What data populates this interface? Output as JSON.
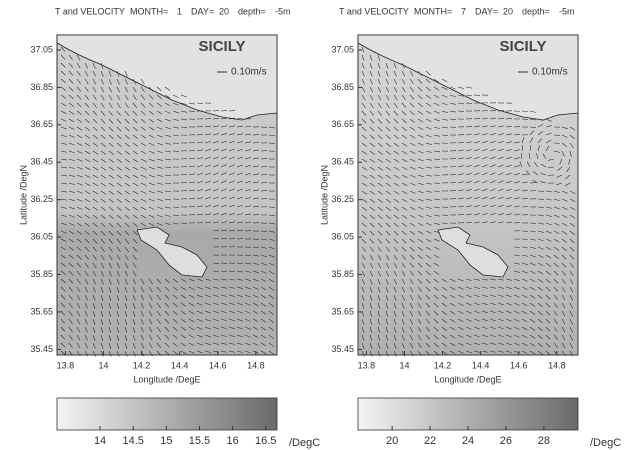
{
  "panels": [
    {
      "header": {
        "title": "T and VELOCITY",
        "month_label": "MONTH=",
        "month": 1,
        "day_label": "DAY=",
        "day": 20,
        "depth_label": "depth=",
        "depth": "-5m"
      },
      "region": "SICILY",
      "scale_label": "0.10m/s",
      "xlabel": "Longitude /DegE",
      "ylabel": "Latitude /DegN",
      "xlim": [
        13.756,
        14.911
      ],
      "ylim": [
        35.42,
        37.13
      ],
      "xticks": [
        13.8,
        14,
        14.2,
        14.4,
        14.6,
        14.8
      ],
      "yticks": [
        35.45,
        35.65,
        35.85,
        36.05,
        36.25,
        36.45,
        36.65,
        36.85,
        37.05
      ],
      "colorbar": {
        "range": [
          13.35,
          16.67
        ],
        "ticks": [
          14,
          14.5,
          15,
          15.5,
          16,
          16.5
        ],
        "unit": "/DegC"
      }
    },
    {
      "header": {
        "title": "T and VELOCITY",
        "month_label": "MONTH=",
        "month": 7,
        "day_label": "DAY=",
        "day": 20,
        "depth_label": "depth=",
        "depth": "-5m"
      },
      "region": "SICILY",
      "scale_label": "0.10m/s",
      "xlabel": "Longitude /DegE",
      "ylabel": "Latitude /DegN",
      "xlim": [
        13.756,
        14.911
      ],
      "ylim": [
        35.42,
        37.13
      ],
      "xticks": [
        13.8,
        14,
        14.2,
        14.4,
        14.6,
        14.8
      ],
      "yticks": [
        35.45,
        35.65,
        35.85,
        36.05,
        36.25,
        36.45,
        36.65,
        36.85,
        37.05
      ],
      "colorbar": {
        "range": [
          18.2,
          29.8
        ],
        "ticks": [
          20,
          22,
          24,
          26,
          28
        ],
        "unit": "/DegC"
      }
    }
  ]
}
